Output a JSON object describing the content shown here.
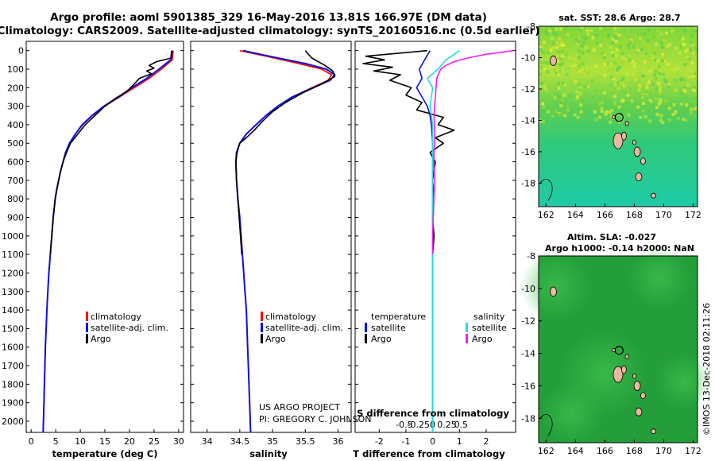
{
  "header": {
    "line1": "Argo profile: aoml 5901385_329 16-May-2016 13.81S 166.97E (DM data)",
    "line2": "Climatology: CARS2009. Satellite-adjusted climatology: synTS_20160516.nc (0.5d earlier)"
  },
  "colors": {
    "climatology": "#ff0000",
    "satellite": "#1010dd",
    "argo": "#000000",
    "sal_satellite": "#22dddd",
    "sal_argo": "#ee22ee",
    "sst_land": "#e8b8a0"
  },
  "legend_profiles": {
    "climatology": "climatology",
    "satellite": "satellite-adj. clim.",
    "argo": "Argo"
  },
  "legend_diff": {
    "temp_head": "temperature",
    "sal_head": "salinity",
    "satellite": "satellite",
    "argo": "Argo"
  },
  "credits": {
    "project": "US ARGO PROJECT",
    "pi": "PI: GREGORY C. JOHNSON"
  },
  "watermark": "©IMOS 13-Dec-2018 02:11:26",
  "depth_ticks": [
    "0",
    "100",
    "200",
    "300",
    "400",
    "500",
    "600",
    "700",
    "800",
    "900",
    "1000",
    "1100",
    "1200",
    "1300",
    "1400",
    "1500",
    "1600",
    "1700",
    "1800",
    "1900",
    "2000"
  ],
  "map_lat_ticks": [
    "-8",
    "-10",
    "-12",
    "-14",
    "-16",
    "-18"
  ],
  "map_lon_ticks": [
    "162",
    "164",
    "166",
    "168",
    "170",
    "172"
  ],
  "chart_data": [
    {
      "type": "line",
      "panel": "temperature",
      "xlabel": "temperature (deg C)",
      "ylabel": "",
      "xlim": [
        -1,
        31
      ],
      "ylim": [
        2060,
        -50
      ],
      "x_ticks": [
        "0",
        "5",
        "10",
        "15",
        "20",
        "25",
        "30"
      ],
      "series": [
        {
          "name": "climatology",
          "points": [
            [
              28.9,
              0
            ],
            [
              28.7,
              50
            ],
            [
              26.5,
              100
            ],
            [
              24,
              150
            ],
            [
              21,
              200
            ],
            [
              18,
              250
            ],
            [
              15,
              300
            ],
            [
              12.5,
              350
            ],
            [
              10.5,
              400
            ],
            [
              9,
              450
            ],
            [
              7.8,
              500
            ],
            [
              7,
              550
            ],
            [
              6.5,
              600
            ],
            [
              6,
              650
            ],
            [
              5.6,
              700
            ],
            [
              5.2,
              750
            ],
            [
              4.9,
              800
            ],
            [
              4.5,
              900
            ],
            [
              4.2,
              1000
            ],
            [
              3.9,
              1100
            ],
            [
              3.6,
              1200
            ],
            [
              3.4,
              1300
            ],
            [
              3.2,
              1400
            ],
            [
              3.05,
              1500
            ],
            [
              2.9,
              1600
            ],
            [
              2.8,
              1700
            ],
            [
              2.7,
              1800
            ],
            [
              2.6,
              1900
            ],
            [
              2.5,
              2000
            ],
            [
              2.45,
              2060
            ]
          ]
        },
        {
          "name": "satellite-adj. clim.",
          "points": [
            [
              28.6,
              0
            ],
            [
              28.4,
              50
            ],
            [
              26,
              100
            ],
            [
              23.5,
              150
            ],
            [
              20.5,
              200
            ],
            [
              17.8,
              250
            ],
            [
              14.8,
              300
            ],
            [
              12.4,
              350
            ],
            [
              10.4,
              400
            ],
            [
              9,
              450
            ],
            [
              7.8,
              500
            ],
            [
              7,
              550
            ],
            [
              6.5,
              600
            ],
            [
              6,
              650
            ],
            [
              5.6,
              700
            ],
            [
              5.2,
              750
            ],
            [
              4.9,
              800
            ],
            [
              4.5,
              900
            ],
            [
              4.2,
              1000
            ],
            [
              3.9,
              1100
            ],
            [
              3.6,
              1200
            ],
            [
              3.4,
              1300
            ],
            [
              3.2,
              1400
            ],
            [
              3.05,
              1500
            ],
            [
              2.9,
              1600
            ],
            [
              2.8,
              1700
            ],
            [
              2.7,
              1800
            ],
            [
              2.6,
              1900
            ],
            [
              2.5,
              2000
            ],
            [
              2.45,
              2060
            ]
          ]
        },
        {
          "name": "Argo",
          "points": [
            [
              28.7,
              0
            ],
            [
              28.5,
              40
            ],
            [
              25.5,
              60
            ],
            [
              24,
              80
            ],
            [
              25,
              95
            ],
            [
              23.5,
              110
            ],
            [
              24.5,
              125
            ],
            [
              22,
              150
            ],
            [
              21,
              180
            ],
            [
              19.5,
              220
            ],
            [
              17,
              260
            ],
            [
              15,
              300
            ],
            [
              13,
              350
            ],
            [
              11,
              400
            ],
            [
              9.5,
              450
            ],
            [
              8,
              500
            ],
            [
              7.2,
              550
            ],
            [
              6.5,
              600
            ],
            [
              6,
              650
            ],
            [
              5.6,
              700
            ],
            [
              5.2,
              750
            ],
            [
              4.9,
              800
            ],
            [
              4.5,
              900
            ],
            [
              4.2,
              1000
            ],
            [
              3.9,
              1100
            ]
          ]
        }
      ]
    },
    {
      "type": "line",
      "panel": "salinity",
      "xlabel": "salinity",
      "ylabel": "",
      "xlim": [
        33.75,
        36.2
      ],
      "ylim": [
        2060,
        -50
      ],
      "x_ticks": [
        "34",
        "34.5",
        "35",
        "35.5",
        "36"
      ],
      "series": [
        {
          "name": "climatology",
          "points": [
            [
              34.5,
              0
            ],
            [
              34.9,
              30
            ],
            [
              35.4,
              70
            ],
            [
              35.75,
              100
            ],
            [
              35.9,
              130
            ],
            [
              35.85,
              160
            ],
            [
              35.6,
              200
            ],
            [
              35.3,
              250
            ],
            [
              35.1,
              300
            ],
            [
              34.9,
              350
            ],
            [
              34.75,
              400
            ],
            [
              34.6,
              450
            ],
            [
              34.5,
              500
            ],
            [
              34.45,
              550
            ],
            [
              34.44,
              600
            ],
            [
              34.45,
              700
            ],
            [
              34.47,
              800
            ],
            [
              34.5,
              900
            ],
            [
              34.52,
              1000
            ],
            [
              34.54,
              1100
            ],
            [
              34.56,
              1200
            ],
            [
              34.58,
              1300
            ],
            [
              34.6,
              1400
            ],
            [
              34.61,
              1500
            ],
            [
              34.62,
              1600
            ],
            [
              34.63,
              1700
            ],
            [
              34.64,
              1800
            ],
            [
              34.65,
              1900
            ],
            [
              34.66,
              2000
            ],
            [
              34.665,
              2060
            ]
          ]
        },
        {
          "name": "satellite-adj. clim.",
          "points": [
            [
              34.55,
              0
            ],
            [
              34.95,
              30
            ],
            [
              35.5,
              70
            ],
            [
              35.82,
              100
            ],
            [
              35.95,
              130
            ],
            [
              35.88,
              160
            ],
            [
              35.62,
              200
            ],
            [
              35.3,
              250
            ],
            [
              35.08,
              300
            ],
            [
              34.9,
              350
            ],
            [
              34.75,
              400
            ],
            [
              34.6,
              450
            ],
            [
              34.5,
              500
            ],
            [
              34.45,
              550
            ],
            [
              34.44,
              600
            ],
            [
              34.45,
              700
            ],
            [
              34.47,
              800
            ],
            [
              34.5,
              900
            ],
            [
              34.52,
              1000
            ],
            [
              34.54,
              1100
            ],
            [
              34.56,
              1200
            ],
            [
              34.58,
              1300
            ],
            [
              34.6,
              1400
            ],
            [
              34.61,
              1500
            ],
            [
              34.62,
              1600
            ],
            [
              34.63,
              1700
            ],
            [
              34.64,
              1800
            ],
            [
              34.65,
              1900
            ],
            [
              34.66,
              2000
            ],
            [
              34.665,
              2060
            ]
          ]
        },
        {
          "name": "Argo",
          "points": [
            [
              35.5,
              0
            ],
            [
              35.6,
              40
            ],
            [
              35.8,
              80
            ],
            [
              35.92,
              110
            ],
            [
              35.95,
              140
            ],
            [
              35.75,
              180
            ],
            [
              35.45,
              230
            ],
            [
              35.2,
              280
            ],
            [
              35.0,
              330
            ],
            [
              34.85,
              380
            ],
            [
              34.72,
              430
            ],
            [
              34.6,
              470
            ],
            [
              34.5,
              500
            ],
            [
              34.46,
              550
            ],
            [
              34.44,
              600
            ],
            [
              34.45,
              700
            ],
            [
              34.47,
              800
            ],
            [
              34.49,
              900
            ],
            [
              34.51,
              1000
            ],
            [
              34.53,
              1100
            ]
          ]
        }
      ]
    },
    {
      "type": "line",
      "panel": "difference",
      "xlabel": "T difference from climatology",
      "x2label": "S difference from climatology",
      "ylabel": "",
      "xlim": [
        -2.9,
        3.1
      ],
      "ylim": [
        2060,
        -50
      ],
      "x_ticks": [
        "-2",
        "-1",
        "0",
        "1",
        "2"
      ],
      "x2_ticks": [
        "-0.5",
        "-0.25",
        "0",
        "0.25",
        "0.5"
      ],
      "series": [
        {
          "name": "temperature satellite",
          "points": [
            [
              -0.1,
              0
            ],
            [
              -0.3,
              50
            ],
            [
              -0.5,
              100
            ],
            [
              -0.4,
              150
            ],
            [
              -0.6,
              200
            ],
            [
              -0.4,
              250
            ],
            [
              -0.2,
              300
            ],
            [
              -0.1,
              350
            ],
            [
              -0.05,
              400
            ],
            [
              0,
              500
            ],
            [
              0,
              700
            ],
            [
              0,
              1000
            ],
            [
              0,
              1500
            ],
            [
              0,
              2000
            ],
            [
              0,
              2060
            ]
          ]
        },
        {
          "name": "temperature Argo",
          "points": [
            [
              -0.2,
              0
            ],
            [
              -2.5,
              30
            ],
            [
              -1.8,
              50
            ],
            [
              -2.6,
              70
            ],
            [
              -1.5,
              90
            ],
            [
              -2.2,
              110
            ],
            [
              -1.2,
              130
            ],
            [
              -1.6,
              160
            ],
            [
              -0.8,
              200
            ],
            [
              -1.0,
              240
            ],
            [
              -0.4,
              280
            ],
            [
              -0.6,
              320
            ],
            [
              0.4,
              360
            ],
            [
              0.2,
              400
            ],
            [
              0.8,
              430
            ],
            [
              0.1,
              470
            ],
            [
              0.4,
              500
            ],
            [
              -0.1,
              550
            ],
            [
              0.1,
              600
            ],
            [
              0,
              700
            ],
            [
              0.05,
              800
            ],
            [
              0,
              900
            ],
            [
              0.05,
              1000
            ],
            [
              0,
              1100
            ]
          ]
        },
        {
          "name": "salinity satellite",
          "points": [
            [
              1.0,
              0
            ],
            [
              0.5,
              50
            ],
            [
              0.2,
              100
            ],
            [
              -0.2,
              150
            ],
            [
              0,
              200
            ],
            [
              -0.1,
              300
            ],
            [
              0,
              400
            ],
            [
              0,
              500
            ],
            [
              0,
              700
            ],
            [
              0,
              1000
            ],
            [
              0,
              1500
            ],
            [
              0,
              2000
            ],
            [
              0,
              2060
            ]
          ]
        },
        {
          "name": "salinity Argo",
          "points": [
            [
              3.0,
              0
            ],
            [
              2.0,
              20
            ],
            [
              1.3,
              40
            ],
            [
              0.8,
              60
            ],
            [
              0.5,
              80
            ],
            [
              0.3,
              100
            ],
            [
              0.15,
              150
            ],
            [
              0.1,
              250
            ],
            [
              0.05,
              350
            ],
            [
              0.08,
              450
            ],
            [
              0.04,
              600
            ],
            [
              0.08,
              700
            ],
            [
              0.05,
              800
            ],
            [
              0.02,
              900
            ],
            [
              0,
              1000
            ],
            [
              0,
              1100
            ]
          ]
        }
      ]
    },
    {
      "type": "heatmap",
      "panel": "sst-map",
      "title": "sat. SST: 28.6 Argo: 28.7",
      "x_ticks": [
        "162",
        "164",
        "166",
        "168",
        "170",
        "172"
      ],
      "y_ticks": [
        "-8",
        "-10",
        "-12",
        "-14",
        "-16",
        "-18"
      ],
      "xlim": [
        161.5,
        172.3
      ],
      "ylim": [
        -8,
        -19.5
      ],
      "marker": [
        166.97,
        -13.81
      ]
    },
    {
      "type": "heatmap",
      "panel": "sla-map",
      "title": "Altim. SLA: -0.027",
      "subtitle": "Argo h1000: -0.14 h2000: NaN",
      "x_ticks": [
        "162",
        "164",
        "166",
        "168",
        "170",
        "172"
      ],
      "y_ticks": [
        "-8",
        "-10",
        "-12",
        "-14",
        "-16",
        "-18"
      ],
      "xlim": [
        161.5,
        172.3
      ],
      "ylim": [
        -8,
        -19.5
      ],
      "marker": [
        166.97,
        -13.81
      ]
    }
  ]
}
